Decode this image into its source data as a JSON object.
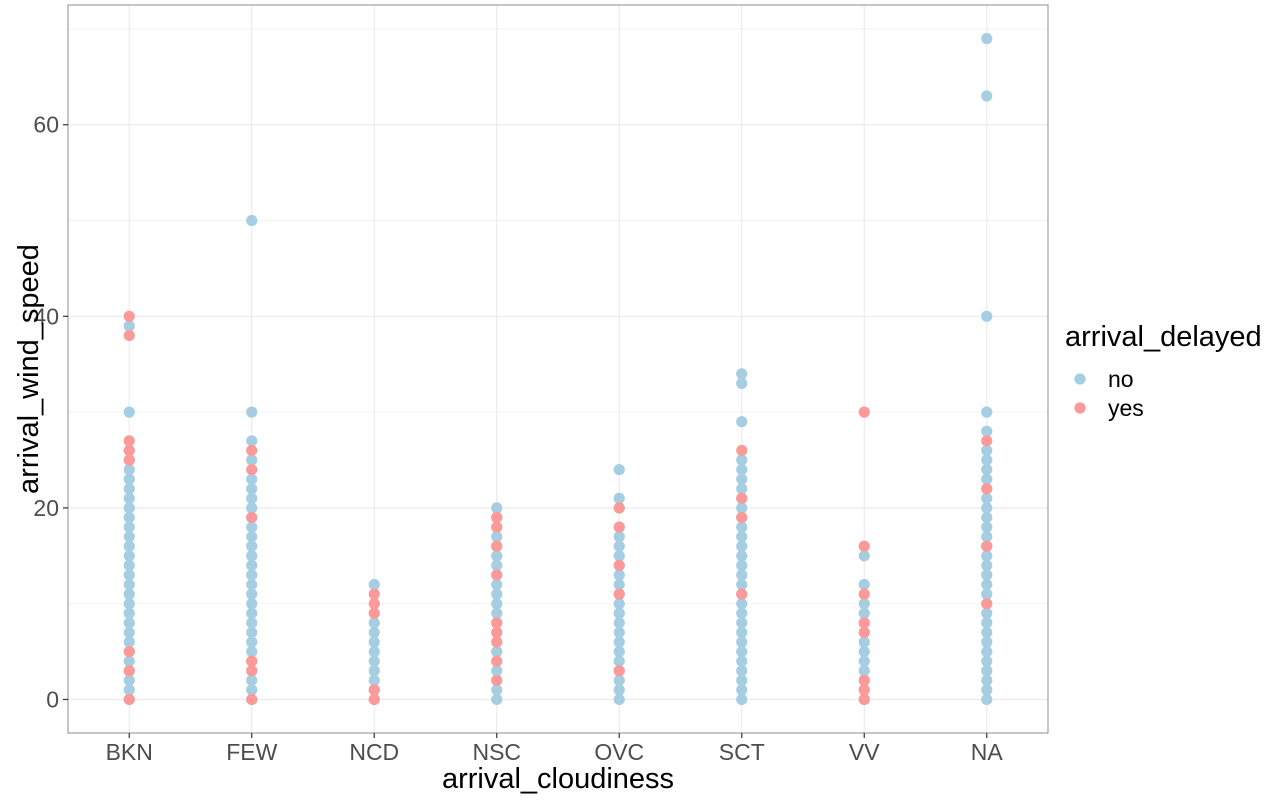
{
  "chart_data": {
    "type": "scatter",
    "title": "",
    "xlabel": "arrival_cloudiness",
    "ylabel": "arrival_wind_speed",
    "categories": [
      "BKN",
      "FEW",
      "NCD",
      "NSC",
      "OVC",
      "SCT",
      "VV",
      "NA"
    ],
    "y_ticks": [
      0,
      20,
      40,
      60
    ],
    "ylim": [
      -3.5,
      72.5
    ],
    "grid": true,
    "legend": {
      "title": "arrival_delayed",
      "position": "right"
    },
    "series": [
      {
        "name": "no",
        "color": "#a6cee3",
        "points": {
          "BKN": [
            0,
            1,
            2,
            3,
            4,
            5,
            6,
            7,
            8,
            9,
            10,
            11,
            12,
            13,
            14,
            15,
            16,
            17,
            18,
            19,
            20,
            21,
            22,
            23,
            24,
            25,
            26,
            30,
            39
          ],
          "FEW": [
            0,
            1,
            2,
            3,
            4,
            5,
            6,
            7,
            8,
            9,
            10,
            11,
            12,
            13,
            14,
            15,
            16,
            17,
            18,
            19,
            20,
            21,
            22,
            23,
            25,
            27,
            30,
            50
          ],
          "NCD": [
            0,
            1,
            2,
            3,
            4,
            5,
            6,
            7,
            8,
            12
          ],
          "NSC": [
            0,
            1,
            2,
            3,
            4,
            5,
            6,
            7,
            8,
            9,
            10,
            11,
            12,
            13,
            14,
            15,
            16,
            17,
            18,
            19,
            20
          ],
          "OVC": [
            0,
            1,
            2,
            3,
            4,
            5,
            6,
            7,
            8,
            9,
            10,
            11,
            12,
            13,
            14,
            15,
            16,
            17,
            18,
            20,
            21,
            24
          ],
          "SCT": [
            0,
            1,
            2,
            3,
            4,
            5,
            6,
            7,
            8,
            9,
            10,
            11,
            12,
            13,
            14,
            15,
            16,
            17,
            18,
            19,
            20,
            21,
            22,
            23,
            24,
            25,
            29,
            33,
            34
          ],
          "VV": [
            0,
            1,
            2,
            3,
            4,
            5,
            6,
            7,
            8,
            9,
            10,
            12,
            15
          ],
          "NA": [
            0,
            1,
            2,
            3,
            4,
            5,
            6,
            7,
            8,
            9,
            10,
            11,
            12,
            13,
            14,
            15,
            16,
            17,
            18,
            19,
            20,
            21,
            22,
            23,
            24,
            25,
            26,
            28,
            30,
            40,
            63,
            69
          ]
        }
      },
      {
        "name": "yes",
        "color": "#fb9a99",
        "points": {
          "BKN": [
            0,
            3,
            5,
            25,
            26,
            27,
            38,
            40
          ],
          "FEW": [
            0,
            3,
            4,
            19,
            24,
            26
          ],
          "NCD": [
            0,
            1,
            9,
            10,
            11
          ],
          "NSC": [
            2,
            4,
            6,
            7,
            8,
            13,
            16,
            18,
            19
          ],
          "OVC": [
            3,
            11,
            14,
            18,
            20
          ],
          "SCT": [
            11,
            19,
            21,
            26
          ],
          "VV": [
            0,
            1,
            2,
            7,
            8,
            11,
            16,
            30
          ],
          "NA": [
            10,
            16,
            22,
            27
          ]
        }
      }
    ]
  }
}
